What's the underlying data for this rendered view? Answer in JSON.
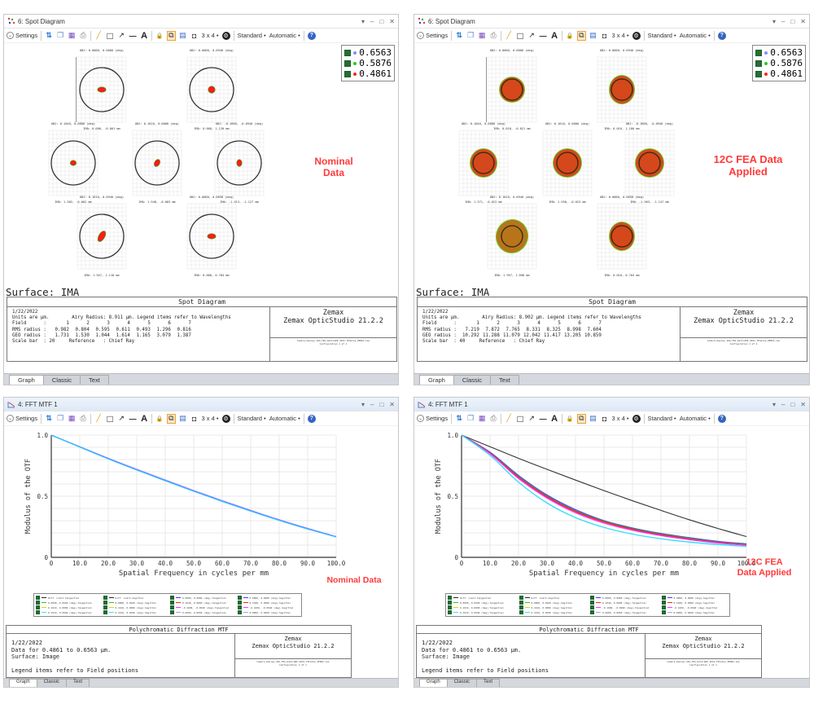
{
  "panels": {
    "spot_nominal": {
      "title": "6: Spot Diagram",
      "toolbar": {
        "settings_label": "Settings",
        "layout_label": "3 x 4 •",
        "standard_label": "Standard •",
        "automatic_label": "Automatic •"
      },
      "legend": [
        "0.6563",
        "0.5876",
        "0.4861"
      ],
      "legend_colors": [
        "#8a8aff",
        "#22cc22",
        "#ff2020"
      ],
      "annotation": [
        "Nominal",
        "Data"
      ],
      "fields": [
        {
          "obj": "OBJ: 0.0000, 0.0000 (deg)",
          "ima": "IMA: 0.000, -0.001 mm"
        },
        {
          "obj": "OBJ: 0.0000, 0.0940 (deg)",
          "ima": "IMA: 0.000, 1.120 mm"
        },
        {
          "obj": "OBJ: 0.1040, 0.0000 (deg)",
          "ima": "IMA: 1.382, -0.002 mm"
        },
        {
          "obj": "OBJ: 0.1610, 0.0000 (deg)",
          "ima": "IMA: 1.948, -0.003 mm"
        },
        {
          "obj": "OBJ: -0.1600, -0.0940 (deg)",
          "ima": "IMA: -1.913, -1.127 mm"
        },
        {
          "obj": "OBJ: 0.1610, 0.0940 (deg)",
          "ima": "IMA: 1.947, 1.118 mm"
        },
        {
          "obj": "OBJ: 0.0000, 0.0658 (deg)",
          "ima": "IMA: 0.000, 0.784 mm"
        }
      ],
      "scale_label": "20.00",
      "surface": "Surface: IMA",
      "info": {
        "heading": "Spot Diagram",
        "date": "1/22/2022",
        "units_line": "Units are µm.        Airy Radius: 8.911 µm. Legend items refer to Wavelengths",
        "field_label": "Field      :",
        "field_values": [
          "1",
          "2",
          "3",
          "4",
          "5",
          "6",
          "7"
        ],
        "rms_label": "RMS radius :",
        "rms_values": [
          "0.982",
          "0.804",
          "0.595",
          "0.611",
          "0.493",
          "1.296",
          "0.816"
        ],
        "geo_label": "GEO radius :",
        "geo_values": [
          "1.731",
          "1.530",
          "1.044",
          "1.614",
          "1.165",
          "3.079",
          "1.387"
        ],
        "scale_line": "Scale bar  : 20     Reference   : Chief Ray",
        "company": "Zemax",
        "product": "Zemax OpticStudio 21.2.2",
        "file_line": "Camera_Design_10G_FEA_DeformDE_2021_TPhotos_ZEMAX.zos",
        "config_line": "Configuration 1 of 1"
      },
      "tabs": [
        "Graph",
        "Classic",
        "Text"
      ]
    },
    "spot_fea": {
      "title": "6: Spot Diagram",
      "toolbar": {
        "settings_label": "Settings",
        "layout_label": "3 x 4 •",
        "standard_label": "Standard •",
        "automatic_label": "Automatic •"
      },
      "legend": [
        "0.6563",
        "0.5876",
        "0.4861"
      ],
      "legend_colors": [
        "#8a8aff",
        "#22cc22",
        "#ff2020"
      ],
      "annotation": [
        "12C FEA Data",
        "Applied"
      ],
      "fields": [
        {
          "obj": "OBJ: 0.0000, 0.0000 (deg)",
          "ima": "IMA: 0.010, -0.021 mm"
        },
        {
          "obj": "OBJ: 0.0000, 0.0940 (deg)",
          "ima": "IMA: 0.010, 1.100 mm"
        },
        {
          "obj": "OBJ: 0.1040, 0.0000 (deg)",
          "ima": "IMA: 1.371, -0.022 mm"
        },
        {
          "obj": "OBJ: 0.1610, 0.0000 (deg)",
          "ima": "IMA: 1.958, -0.023 mm"
        },
        {
          "obj": "OBJ: -0.1600, -0.0940 (deg)",
          "ima": "IMA: -1.903, -1.147 mm"
        },
        {
          "obj": "OBJ: 0.1610, 0.0940 (deg)",
          "ima": "IMA: 1.957, 1.098 mm"
        },
        {
          "obj": "OBJ: 0.0000, 0.0658 (deg)",
          "ima": "IMA: 0.010, 0.764 mm"
        }
      ],
      "scale_label": "40.00",
      "surface": "Surface: IMA",
      "info": {
        "heading": "Spot Diagram",
        "date": "1/22/2022",
        "units_line": "Units are µm.        Airy Radius: 8.902 µm. Legend items refer to Wavelengths",
        "field_label": "Field      :",
        "field_values": [
          "1",
          "2",
          "3",
          "4",
          "5",
          "6",
          "7"
        ],
        "rms_label": "RMS radius :",
        "rms_values": [
          "7.219",
          "7.872",
          "7.765",
          "8.331",
          "8.325",
          "8.998",
          "7.604"
        ],
        "geo_label": "GEO radius :",
        "geo_values": [
          "10.292",
          "11.288",
          "11.079",
          "12.042",
          "11.417",
          "13.205",
          "10.859"
        ],
        "scale_line": "Scale bar  : 40     Reference   : Chief Ray",
        "company": "Zemax",
        "product": "Zemax OpticStudio 21.2.2",
        "file_line": "Camera_Design_10G_FEA_DeformDE_2021_TPhotos_ZEMAX.zos",
        "config_line": "Configuration 1 of 1"
      },
      "tabs": [
        "Graph",
        "Classic",
        "Text"
      ]
    },
    "mtf_nominal": {
      "title": "4: FFT MTF 1",
      "toolbar": {
        "settings_label": "Settings",
        "layout_label": "3 x 4 •",
        "standard_label": "Standard •",
        "automatic_label": "Automatic •"
      },
      "annotation": [
        "Nominal Data"
      ],
      "info": {
        "heading": "Polychromatic Diffraction MTF",
        "date": "1/22/2022",
        "data_line": "Data for 0.4861 to 0.6563 µm.",
        "surface_line": "Surface: Image",
        "legend_line": "Legend items refer to Field positions",
        "company": "Zemax",
        "product": "Zemax OpticStudio 21.2.2",
        "file_line": "Camera_Design_10G_FEA_DeformDE_2021_TPhotos_ZEMAX.zos",
        "config_line": "Configuration 1 of 1"
      },
      "tabs": [
        "Graph",
        "Classic",
        "Text"
      ]
    },
    "mtf_fea": {
      "title": "4: FFT MTF 1",
      "toolbar": {
        "settings_label": "Settings",
        "layout_label": "3 x 4 •",
        "standard_label": "Standard •",
        "automatic_label": "Automatic •"
      },
      "annotation": [
        "12C FEA",
        "Data Applied"
      ],
      "info": {
        "heading": "Polychromatic Diffraction MTF",
        "date": "1/22/2022",
        "data_line": "Data for 0.4861 to 0.6563 µm.",
        "surface_line": "Surface: Image",
        "legend_line": "Legend items refer to Field positions",
        "company": "Zemax",
        "product": "Zemax OpticStudio 21.2.2",
        "file_line": "Camera_Design_10G_FEA_DeformDE_2021_TPhotos_ZEMAX.zos",
        "config_line": "Configuration 1 of 1"
      },
      "tabs": [
        "Graph",
        "Classic",
        "Text"
      ]
    }
  },
  "mtf_legend": [
    {
      "label": "Diff. Limit-Tangential",
      "color": "#222222"
    },
    {
      "label": "Diff. Limit-Sagittal",
      "color": "#222222"
    },
    {
      "label": "0.0000, 0.0000 (deg)-Tangential",
      "color": "#3a3aff"
    },
    {
      "label": "0.0000, 0.0000 (deg)-Sagittal",
      "color": "#3a3aff"
    },
    {
      "label": "0.0000, 0.0940 (deg)-Tangential",
      "color": "#22cc22"
    },
    {
      "label": "0.0000, 0.0940 (deg)-Sagittal",
      "color": "#22cc22"
    },
    {
      "label": "0.1040, 0.0000 (deg)-Tangential",
      "color": "#ff2020"
    },
    {
      "label": "0.1040, 0.0000 (deg)-Sagittal",
      "color": "#ff2020"
    },
    {
      "label": "0.1610, 0.0000 (deg)-Tangential",
      "color": "#e6d000"
    },
    {
      "label": "0.1610, 0.0000 (deg)-Sagittal",
      "color": "#e6d000"
    },
    {
      "label": "-0.1600, -0.0940 (deg)-Tangential",
      "color": "#ff33ff"
    },
    {
      "label": "-0.1600, -0.0940 (deg)-Sagittal",
      "color": "#ff33ff"
    },
    {
      "label": "0.1610, 0.0940 (deg)-Tangential",
      "color": "#33e0ff"
    },
    {
      "label": "0.1610, 0.0940 (deg)-Sagittal",
      "color": "#33e0ff"
    },
    {
      "label": "0.0000, 0.0658 (deg)-Tangential",
      "color": "#a0a0ff"
    },
    {
      "label": "0.0000, 0.0658 (deg)-Sagittal",
      "color": "#a0a0ff"
    }
  ],
  "chart_data": [
    {
      "type": "line",
      "id": "mtf_nominal",
      "title": "Polychromatic Diffraction MTF",
      "xlabel": "Spatial Frequency in cycles per mm",
      "ylabel": "Modulus of the OTF",
      "xlim": [
        0,
        100
      ],
      "ylim": [
        0,
        1
      ],
      "xticks": [
        "0",
        "10.0",
        "20.0",
        "30.0",
        "40.0",
        "50.0",
        "60.0",
        "70.0",
        "80.0",
        "90.0",
        "100.0"
      ],
      "yticks": [
        "0",
        "0.5",
        "1.0"
      ],
      "grid": true,
      "x": [
        0,
        10,
        20,
        30,
        40,
        50,
        60,
        70,
        80,
        90,
        100
      ],
      "series": [
        {
          "name": "Diff. Limit",
          "color": "#a070ff",
          "values": [
            1.0,
            0.905,
            0.81,
            0.72,
            0.632,
            0.546,
            0.463,
            0.384,
            0.307,
            0.236,
            0.17
          ]
        },
        {
          "name": "Fields (all)",
          "color": "#33bbff",
          "values": [
            1.0,
            0.903,
            0.806,
            0.715,
            0.627,
            0.541,
            0.458,
            0.379,
            0.303,
            0.232,
            0.167
          ]
        }
      ]
    },
    {
      "type": "line",
      "id": "mtf_fea",
      "title": "Polychromatic Diffraction MTF",
      "xlabel": "Spatial Frequency in cycles per mm",
      "ylabel": "Modulus of the OTF",
      "xlim": [
        0,
        100
      ],
      "ylim": [
        0,
        1
      ],
      "xticks": [
        "0",
        "10.0",
        "20.0",
        "30.0",
        "40.0",
        "50.0",
        "60.0",
        "70.0",
        "80.0",
        "90.0",
        "100.0"
      ],
      "yticks": [
        "0",
        "0.5",
        "1.0"
      ],
      "grid": true,
      "x": [
        0,
        10,
        20,
        30,
        40,
        50,
        60,
        70,
        80,
        90,
        100
      ],
      "series": [
        {
          "name": "Diff. Limit",
          "color": "#333333",
          "values": [
            1.0,
            0.905,
            0.81,
            0.72,
            0.632,
            0.546,
            0.463,
            0.384,
            0.307,
            0.236,
            0.17
          ]
        },
        {
          "name": "0.0000, 0.0000 (deg)",
          "color": "#5050ff",
          "values": [
            1.0,
            0.86,
            0.67,
            0.51,
            0.39,
            0.3,
            0.24,
            0.195,
            0.16,
            0.13,
            0.11
          ]
        },
        {
          "name": "0.0000, 0.0940 (deg)",
          "color": "#22aa22",
          "values": [
            1.0,
            0.855,
            0.66,
            0.5,
            0.38,
            0.295,
            0.235,
            0.19,
            0.155,
            0.125,
            0.105
          ]
        },
        {
          "name": "0.1040, 0.0000 (deg)",
          "color": "#ff2020",
          "values": [
            1.0,
            0.852,
            0.655,
            0.495,
            0.375,
            0.29,
            0.23,
            0.185,
            0.15,
            0.122,
            0.102
          ]
        },
        {
          "name": "-0.1600, -0.0940 (deg)",
          "color": "#ff33ff",
          "values": [
            1.0,
            0.848,
            0.645,
            0.485,
            0.365,
            0.28,
            0.222,
            0.178,
            0.145,
            0.118,
            0.098
          ]
        },
        {
          "name": "0.1610, 0.0940 (deg)",
          "color": "#33e0ff",
          "values": [
            1.0,
            0.835,
            0.615,
            0.445,
            0.325,
            0.245,
            0.19,
            0.152,
            0.125,
            0.105,
            0.09
          ]
        }
      ]
    }
  ]
}
